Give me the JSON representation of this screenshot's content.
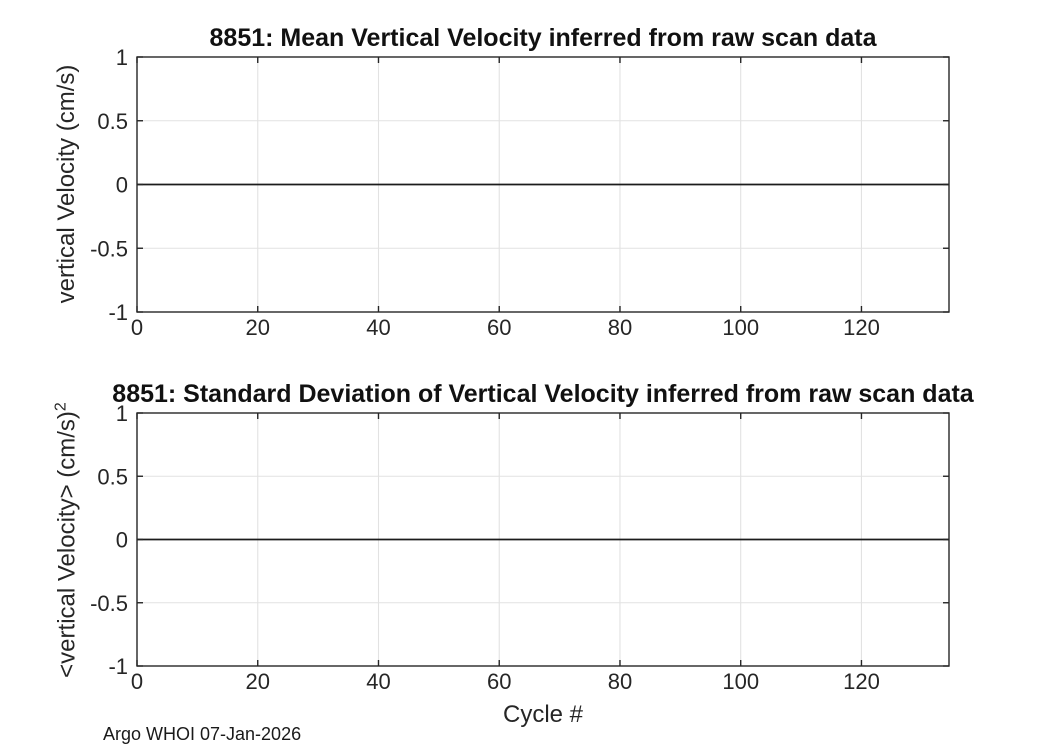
{
  "figure": {
    "footer": "Argo WHOI 07-Jan-2026",
    "background": "#ffffff",
    "axis_color": "#262626",
    "grid_color": "#e2e2e2",
    "text_color": "#262626"
  },
  "chart_data": [
    {
      "type": "line",
      "title": "8851: Mean Vertical Velocity inferred from raw scan data",
      "xlabel": "",
      "ylabel": "vertical Velocity (cm/s)",
      "ylabel_sup": "",
      "xlim": [
        0,
        134.5
      ],
      "ylim": [
        -1,
        1
      ],
      "xticks": [
        0,
        20,
        40,
        60,
        80,
        100,
        120
      ],
      "yticks": [
        -1,
        -0.5,
        0,
        0.5,
        1
      ],
      "grid": true,
      "legend": null,
      "series": [
        {
          "name": "mean-vertical-velocity",
          "x": [
            0,
            134.5
          ],
          "y": [
            0,
            0
          ],
          "color": "#1c1c1c"
        }
      ]
    },
    {
      "type": "line",
      "title": "8851: Standard Deviation of Vertical Velocity inferred from raw scan data",
      "xlabel": "Cycle #",
      "ylabel": "<vertical Velocity> (cm/s)",
      "ylabel_sup": "2",
      "xlim": [
        0,
        134.5
      ],
      "ylim": [
        -1,
        1
      ],
      "xticks": [
        0,
        20,
        40,
        60,
        80,
        100,
        120
      ],
      "yticks": [
        -1,
        -0.5,
        0,
        0.5,
        1
      ],
      "grid": true,
      "legend": null,
      "series": [
        {
          "name": "std-vertical-velocity",
          "x": [
            0,
            134.5
          ],
          "y": [
            0,
            0
          ],
          "color": "#1c1c1c"
        }
      ]
    }
  ]
}
